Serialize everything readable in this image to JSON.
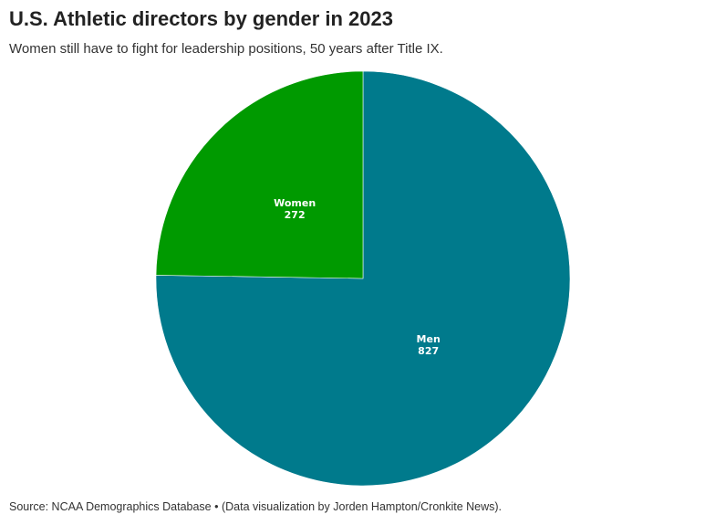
{
  "header": {
    "title": "U.S. Athletic directors by gender in 2023",
    "subtitle": "Women still have to fight for leadership positions, 50 years after Title IX."
  },
  "footer": {
    "source": "Source: NCAA Demographics Database • (Data visualization by Jorden Hampton/Cronkite News)."
  },
  "chart_data": {
    "type": "pie",
    "title": "U.S. Athletic directors by gender in 2023",
    "subtitle": "Women still have to fight for leadership positions, 50 years after Title IX.",
    "categories": [
      "Men",
      "Women"
    ],
    "values": [
      827,
      272
    ],
    "labels": [
      "827",
      "272"
    ],
    "colors": [
      "#007a8c",
      "#009a00"
    ],
    "legend": "none"
  }
}
